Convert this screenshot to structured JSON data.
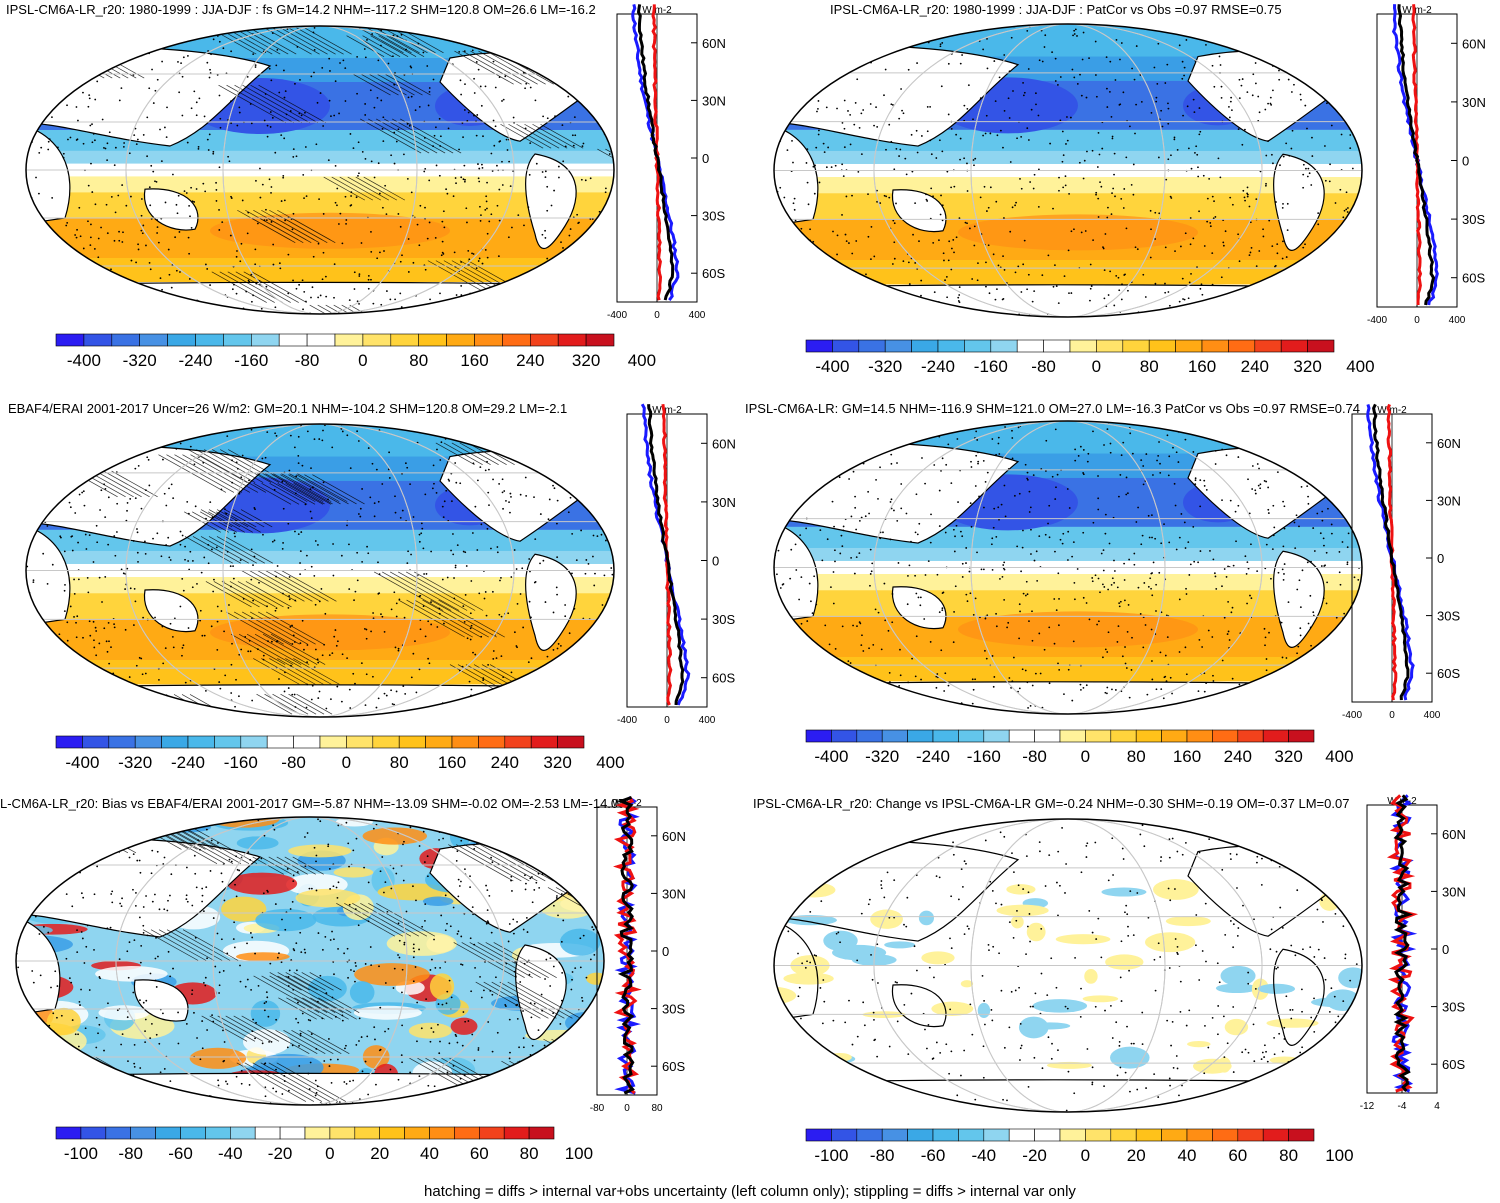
{
  "panels": [
    {
      "id": "p1",
      "title": "IPSL-CM6A-LR_r20: 1980-1999 : JJA-DJF : fs GM=14.2 NHM=-117.2 SHM=120.8 OM=26.6 LM=-16.2",
      "colorbar_ticks": [
        "-400",
        "-320",
        "-240",
        "-160",
        "-80",
        "0",
        "80",
        "160",
        "240",
        "320",
        "400"
      ],
      "lat_ticks": [
        "60N",
        "30N",
        "0",
        "30S",
        "60S"
      ],
      "x_ticks": [
        "-400",
        "0",
        "400"
      ],
      "units": "W m-2",
      "hatching": true,
      "stippling": true
    },
    {
      "id": "p2",
      "title": "IPSL-CM6A-LR_r20: 1980-1999 : JJA-DJF : PatCor vs Obs =0.97 RMSE=0.75",
      "colorbar_ticks": [
        "-400",
        "-320",
        "-240",
        "-160",
        "-80",
        "0",
        "80",
        "160",
        "240",
        "320",
        "400"
      ],
      "lat_ticks": [
        "60N",
        "30N",
        "0",
        "30S",
        "60S"
      ],
      "x_ticks": [
        "-400",
        "0",
        "400"
      ],
      "units": "W m-2",
      "hatching": false,
      "stippling": true
    },
    {
      "id": "p3",
      "title": "EBAF4/ERAI 2001-2017 Uncer=26 W/m2: GM=20.1 NHM=-104.2 SHM=120.8 OM=29.2 LM=-2.1",
      "colorbar_ticks": [
        "-400",
        "-320",
        "-240",
        "-160",
        "-80",
        "0",
        "80",
        "160",
        "240",
        "320",
        "400"
      ],
      "lat_ticks": [
        "60N",
        "30N",
        "0",
        "30S",
        "60S"
      ],
      "x_ticks": [
        "-400",
        "0",
        "400"
      ],
      "units": "W m-2",
      "hatching": true,
      "stippling": true
    },
    {
      "id": "p4",
      "title": "IPSL-CM6A-LR: GM=14.5 NHM=-116.9 SHM=121.0 OM=27.0 LM=-16.3 PatCor vs Obs =0.97 RMSE=0.74",
      "colorbar_ticks": [
        "-400",
        "-320",
        "-240",
        "-160",
        "-80",
        "0",
        "80",
        "160",
        "240",
        "320",
        "400"
      ],
      "lat_ticks": [
        "60N",
        "30N",
        "0",
        "30S",
        "60S"
      ],
      "x_ticks": [
        "-400",
        "0",
        "400"
      ],
      "units": "W m-2",
      "hatching": false,
      "stippling": true
    },
    {
      "id": "p5",
      "title": "L-CM6A-LR_r20: Bias vs EBAF4/ERAI 2001-2017 GM=-5.87 NHM=-13.09 SHM=-0.02 OM=-2.53 LM=-14.07",
      "colorbar_ticks": [
        "-100",
        "-80",
        "-60",
        "-40",
        "-20",
        "0",
        "20",
        "40",
        "60",
        "80",
        "100"
      ],
      "lat_ticks": [
        "60N",
        "30N",
        "0",
        "30S",
        "60S"
      ],
      "x_ticks": [
        "-80",
        "0",
        "80"
      ],
      "units": "W m-2",
      "hatching": true,
      "stippling": true
    },
    {
      "id": "p6",
      "title": "IPSL-CM6A-LR_r20: Change vs IPSL-CM6A-LR GM=-0.24 NHM=-0.30 SHM=-0.19 OM=-0.37 LM=0.07",
      "colorbar_ticks": [
        "-100",
        "-80",
        "-60",
        "-40",
        "-20",
        "0",
        "20",
        "40",
        "60",
        "80",
        "100"
      ],
      "lat_ticks": [
        "60N",
        "30N",
        "0",
        "30S",
        "60S"
      ],
      "x_ticks": [
        "-12",
        "-4",
        "4"
      ],
      "units": "W m-2",
      "hatching": false,
      "stippling": true
    }
  ],
  "colors": {
    "colorbar": [
      "#2b1df2",
      "#3354e6",
      "#3a72e4",
      "#4791e4",
      "#3aa8e6",
      "#4ab8ea",
      "#63c6ec",
      "#8fd5f0",
      "#ffffff",
      "#ffffff",
      "#fff29a",
      "#ffe36a",
      "#ffd43c",
      "#ffc21a",
      "#ffaa14",
      "#ff8e14",
      "#ff6c14",
      "#f2421c",
      "#e21c1c",
      "#c8101e"
    ],
    "line_black": "#000000",
    "line_blue": "#1a1aff",
    "line_red": "#ee1111"
  },
  "footer": "hatching = diffs > internal var+obs uncertainty (left column only); stippling = diffs > internal var only"
}
